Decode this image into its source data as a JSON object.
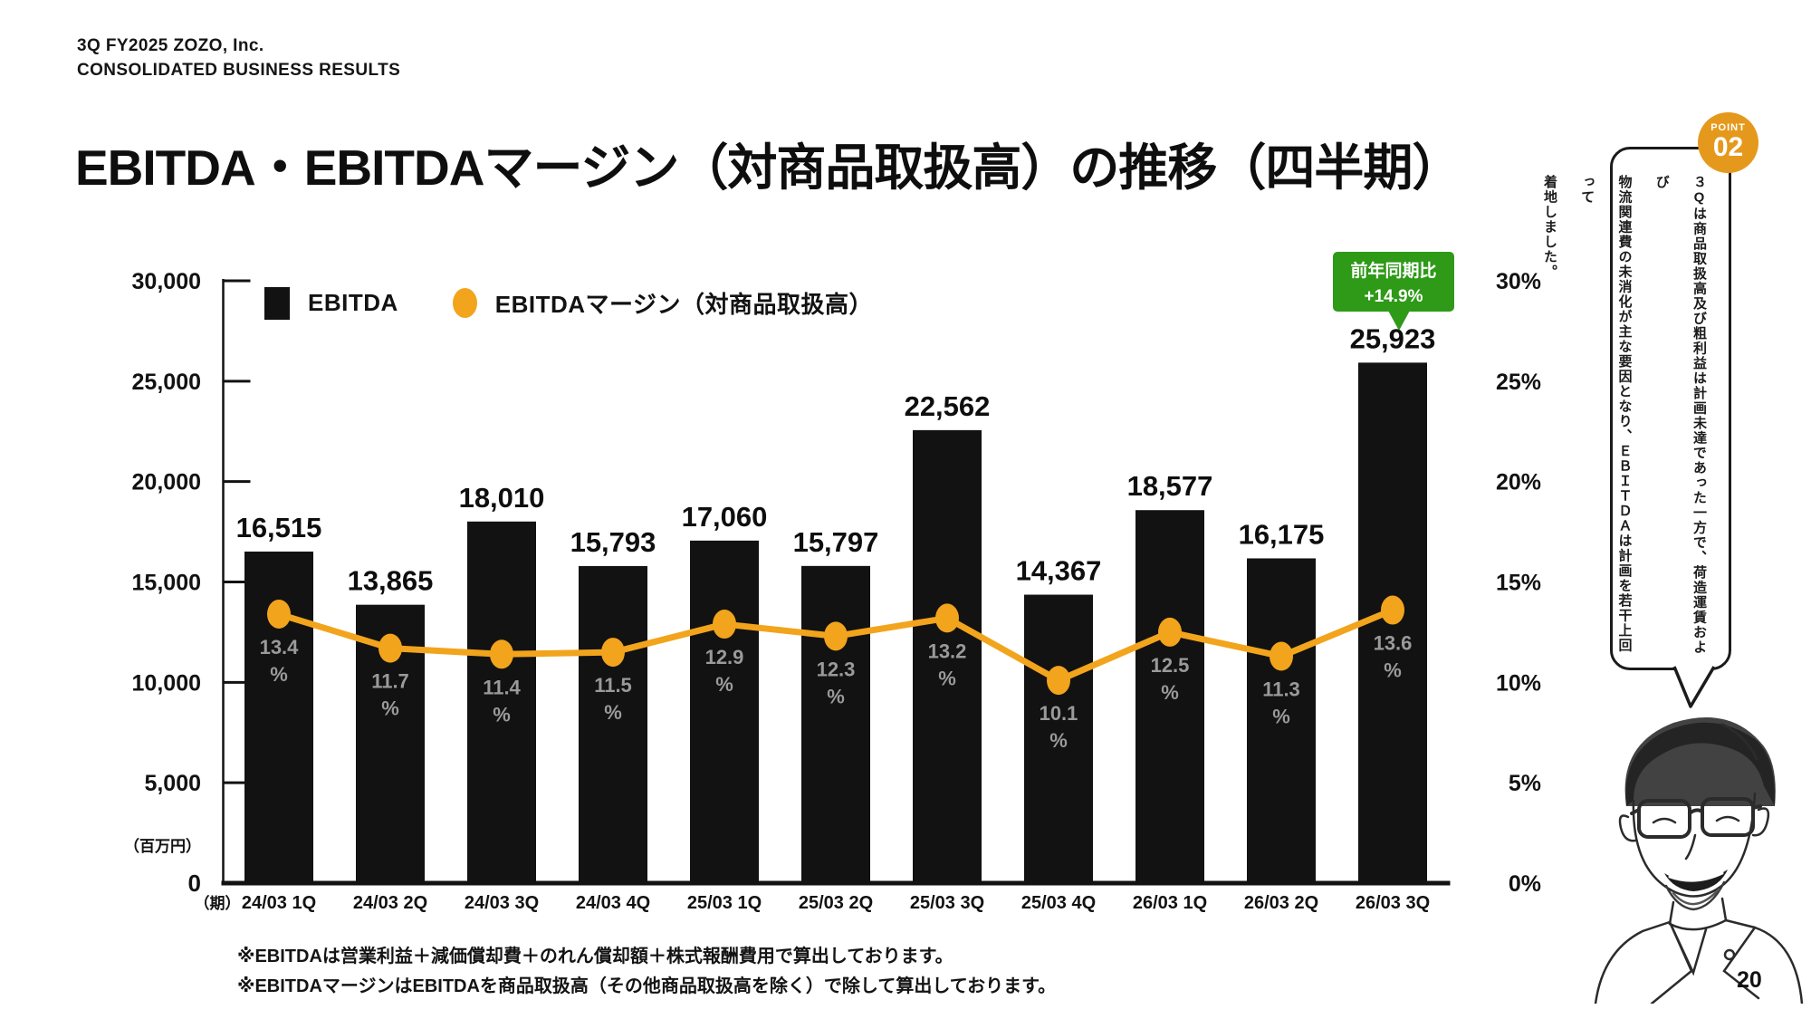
{
  "header": {
    "line1": "3Q FY2025 ZOZO, Inc.",
    "line2": "CONSOLIDATED BUSINESS RESULTS"
  },
  "title": "EBITDA・EBITDAマージン（対商品取扱高）の推移（四半期）",
  "legend": {
    "bar_label": "EBITDA",
    "line_label": "EBITDAマージン（対商品取扱高）"
  },
  "yoy_badge": {
    "line1": "前年同期比",
    "line2": "+14.9%",
    "color": "#2e9a18"
  },
  "chart_data": {
    "type": "bar+line",
    "categories": [
      "24/03 1Q",
      "24/03 2Q",
      "24/03 3Q",
      "24/03 4Q",
      "25/03 1Q",
      "25/03 2Q",
      "25/03 3Q",
      "25/03 4Q",
      "26/03 1Q",
      "26/03 2Q",
      "26/03 3Q"
    ],
    "series": [
      {
        "name": "EBITDA",
        "type": "bar",
        "color": "#121212",
        "values": [
          16515,
          13865,
          18010,
          15793,
          17060,
          15797,
          22562,
          14367,
          18577,
          16175,
          25923
        ],
        "labels": [
          "16,515",
          "13,865",
          "18,010",
          "15,793",
          "17,060",
          "15,797",
          "22,562",
          "14,367",
          "18,577",
          "16,175",
          "25,923"
        ]
      },
      {
        "name": "EBITDAマージン（対商品取扱高）",
        "type": "line",
        "color": "#f2a41c",
        "unit": "%",
        "values": [
          13.4,
          11.7,
          11.4,
          11.5,
          12.9,
          12.3,
          13.2,
          10.1,
          12.5,
          11.3,
          13.6
        ]
      }
    ],
    "left_axis": {
      "unit_label": "（百万円）",
      "max": 30000,
      "tick_values": [
        30000,
        25000,
        20000,
        15000,
        10000,
        5000
      ],
      "tick_labels": [
        "30,000",
        "25,000",
        "20,000",
        "15,000",
        "10,000",
        "5,000"
      ],
      "zero_label": "0"
    },
    "right_axis": {
      "max": 30,
      "tick_values": [
        30,
        25,
        20,
        15,
        10,
        5,
        0
      ],
      "tick_labels": [
        "30%",
        "25%",
        "20%",
        "15%",
        "10%",
        "5%",
        "0%"
      ]
    },
    "x_axis_prefix": "（期）",
    "margin_label_color": "#9a9a9a",
    "grid": false,
    "legend_position": "top-left"
  },
  "sidebar": {
    "point_label": "POINT",
    "point_number": "02",
    "point_color": "#e5991c",
    "bubble_lines": [
      "３Qは商品取扱高及び粗利益は計画未達であった一方で、荷造運賃および",
      "物流関連費の未消化が主な要因となり、ＥＢＩＴＤＡは計画を若干上回って",
      "着地しました。"
    ]
  },
  "footnotes": [
    "※EBITDAは営業利益＋減価償却費＋のれん償却額＋株式報酬費用で算出しております。",
    "※EBITDAマージンはEBITDAを商品取扱高（その他商品取扱高を除く）で除して算出しております。"
  ],
  "page_number": "20"
}
